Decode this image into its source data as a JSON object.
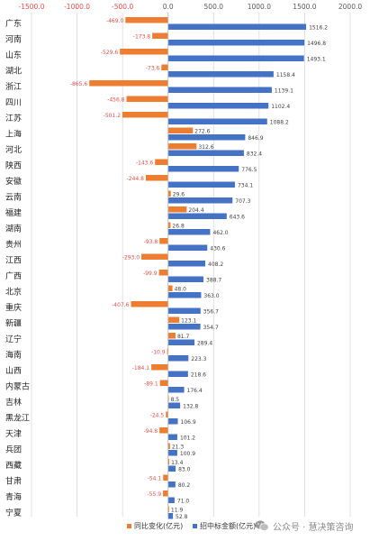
{
  "chart_data": {
    "type": "bar",
    "orientation": "horizontal",
    "title": "",
    "xlabel": "",
    "ylabel": "",
    "xlim": [
      -1500,
      2000
    ],
    "x_ticks": [
      "-1500.0",
      "-1000.0",
      "-500.0",
      "0.0",
      "500.0",
      "1000.0",
      "1500.0",
      "2000.0"
    ],
    "x_tick_values": [
      -1500,
      -1000,
      -500,
      0,
      500,
      1000,
      1500,
      2000
    ],
    "grid": true,
    "legend_position": "bottom",
    "categories": [
      "广东",
      "河南",
      "山东",
      "湖北",
      "浙江",
      "四川",
      "江苏",
      "上海",
      "河北",
      "陕西",
      "安徽",
      "云南",
      "福建",
      "湖南",
      "贵州",
      "江西",
      "广西",
      "北京",
      "重庆",
      "新疆",
      "辽宁",
      "海南",
      "山西",
      "内蒙古",
      "吉林",
      "黑龙江",
      "天津",
      "兵团",
      "西藏",
      "甘肃",
      "青海",
      "宁夏"
    ],
    "series": [
      {
        "name": "同比变化(亿元)",
        "color": "#ED7D31",
        "values": [
          -469.0,
          -173.8,
          -529.6,
          -73.6,
          -865.6,
          -456.8,
          -501.2,
          272.6,
          312.6,
          -143.6,
          -244.8,
          29.6,
          204.4,
          26.8,
          -93.8,
          -293.0,
          -99.9,
          48.0,
          -407.6,
          123.1,
          81.7,
          -10.9,
          -184.1,
          -89.1,
          8.5,
          -24.5,
          -94.8,
          21.3,
          13.4,
          -54.1,
          -55.9,
          11.9
        ],
        "labels": [
          "-469.0",
          "-173.8",
          "-529.6",
          "-73.6",
          "-865.6",
          "-456.8",
          "-501.2",
          "272.6",
          "312.6",
          "-143.6",
          "-244.8",
          "29.6",
          "204.4",
          "26.8",
          "-93.8",
          "-293.0",
          "-99.9",
          "48.0",
          "-407.6",
          "123.1",
          "81.7",
          "-10.9",
          "-184.1",
          "-89.1",
          "8.5",
          "-24.5",
          "-94.8",
          "21.3",
          "13.4",
          "-54.1",
          "-55.9",
          "11.9"
        ]
      },
      {
        "name": "招中标金额(亿元)",
        "color": "#4472C4",
        "values": [
          1516.2,
          1496.8,
          1493.1,
          1158.4,
          1139.1,
          1102.4,
          1088.2,
          846.9,
          832.4,
          776.5,
          734.1,
          707.3,
          643.6,
          462.0,
          430.6,
          408.2,
          388.7,
          363.0,
          356.7,
          354.7,
          289.4,
          223.3,
          218.6,
          176.4,
          132.8,
          106.9,
          101.2,
          100.9,
          83.0,
          80.2,
          71.0,
          52.8
        ],
        "labels": [
          "1516.2",
          "1496.8",
          "1493.1",
          "1158.4",
          "1139.1",
          "1102.4",
          "1088.2",
          "846.9",
          "832.4",
          "776.5",
          "734.1",
          "707.3",
          "643.6",
          "462.0",
          "430.6",
          "408.2",
          "388.7",
          "363.0",
          "356.7",
          "354.7",
          "289.4",
          "223.3",
          "218.6",
          "176.4",
          "132.8",
          "106.9",
          "101.2",
          "100.9",
          "83.0",
          "80.2",
          "71.0",
          "52.8"
        ]
      }
    ]
  },
  "watermark": {
    "text": "公众号 · 慧决策咨询",
    "icon": "wechat-icon"
  }
}
